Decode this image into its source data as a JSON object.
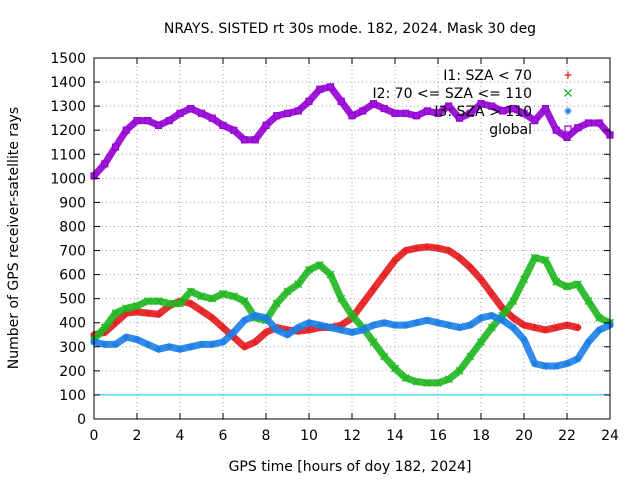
{
  "chart_data": {
    "type": "scatter",
    "title": "NRAYS. SISTED rt 30s mode. 182, 2024. Mask 30 deg",
    "xlabel": "GPS time [hours of doy 182, 2024]",
    "ylabel": "Number of GPS receiver-satellite rays",
    "xlim": [
      0,
      24
    ],
    "ylim": [
      0,
      1500
    ],
    "xticks": [
      0,
      2,
      4,
      6,
      8,
      10,
      12,
      14,
      16,
      18,
      20,
      22,
      24
    ],
    "yticks": [
      0,
      100,
      200,
      300,
      400,
      500,
      600,
      700,
      800,
      900,
      1000,
      1100,
      1200,
      1300,
      1400,
      1500
    ],
    "grid": true,
    "legend_position": "top-right",
    "threshold_line": {
      "y": 100,
      "color": "#00d0d0"
    },
    "series": [
      {
        "name": "I1: SZA < 70",
        "color": "#e41a1c",
        "marker": "plus",
        "x": [
          0,
          0.5,
          1,
          1.5,
          2,
          2.5,
          3,
          3.5,
          4,
          4.5,
          5,
          5.5,
          6,
          6.5,
          7,
          7.5,
          8,
          8.5,
          9,
          9.5,
          10,
          10.5,
          11,
          11.5,
          12,
          12.5,
          13,
          13.5,
          14,
          14.5,
          15,
          15.5,
          16,
          16.5,
          17,
          17.5,
          18,
          18.5,
          19,
          19.5,
          20,
          20.5,
          21,
          21.5,
          22,
          22.5
        ],
        "values": [
          350,
          360,
          400,
          440,
          445,
          440,
          435,
          470,
          490,
          480,
          450,
          420,
          380,
          340,
          300,
          320,
          360,
          380,
          370,
          365,
          370,
          380,
          380,
          390,
          420,
          480,
          540,
          600,
          660,
          700,
          710,
          715,
          710,
          700,
          670,
          630,
          580,
          520,
          460,
          420,
          390,
          380,
          370,
          380,
          390,
          380
        ]
      },
      {
        "name": "I2: 70 <= SZA <= 110",
        "color": "#1fb71f",
        "marker": "x",
        "x": [
          0,
          0.5,
          1,
          1.5,
          2,
          2.5,
          3,
          3.5,
          4,
          4.5,
          5,
          5.5,
          6,
          6.5,
          7,
          7.5,
          8,
          8.5,
          9,
          9.5,
          10,
          10.5,
          11,
          11.5,
          12,
          12.5,
          13,
          13.5,
          14,
          14.5,
          15,
          15.5,
          16,
          16.5,
          17,
          17.5,
          18,
          18.5,
          19,
          19.5,
          20,
          20.5,
          21,
          21.5,
          22,
          22.5,
          23,
          23.5,
          24
        ],
        "values": [
          330,
          380,
          440,
          460,
          470,
          490,
          490,
          480,
          480,
          530,
          510,
          500,
          520,
          510,
          490,
          420,
          410,
          480,
          530,
          560,
          620,
          640,
          600,
          500,
          430,
          380,
          320,
          260,
          210,
          170,
          155,
          150,
          150,
          165,
          200,
          260,
          320,
          380,
          430,
          490,
          580,
          670,
          660,
          570,
          550,
          560,
          490,
          420,
          400
        ]
      },
      {
        "name": "I3: SZA > 110",
        "color": "#1c7fe6",
        "marker": "star",
        "x": [
          0,
          0.5,
          1,
          1.5,
          2,
          2.5,
          3,
          3.5,
          4,
          4.5,
          5,
          5.5,
          6,
          6.5,
          7,
          7.5,
          8,
          8.5,
          9,
          9.5,
          10,
          10.5,
          11,
          11.5,
          12,
          12.5,
          13,
          13.5,
          14,
          14.5,
          15,
          15.5,
          16,
          16.5,
          17,
          17.5,
          18,
          18.5,
          19,
          19.5,
          20,
          20.5,
          21,
          21.5,
          22,
          22.5,
          23,
          23.5,
          24
        ],
        "values": [
          320,
          310,
          310,
          340,
          330,
          310,
          290,
          300,
          290,
          300,
          310,
          310,
          320,
          360,
          410,
          430,
          420,
          370,
          350,
          380,
          400,
          390,
          380,
          370,
          360,
          370,
          390,
          400,
          390,
          390,
          400,
          410,
          400,
          390,
          380,
          390,
          420,
          430,
          410,
          380,
          330,
          230,
          220,
          220,
          230,
          250,
          320,
          370,
          390
        ]
      },
      {
        "name": "global",
        "color": "#9400d3",
        "marker": "square",
        "x": [
          0,
          0.5,
          1,
          1.5,
          2,
          2.5,
          3,
          3.5,
          4,
          4.5,
          5,
          5.5,
          6,
          6.5,
          7,
          7.5,
          8,
          8.5,
          9,
          9.5,
          10,
          10.5,
          11,
          11.5,
          12,
          12.5,
          13,
          13.5,
          14,
          14.5,
          15,
          15.5,
          16,
          16.5,
          17,
          17.5,
          18,
          18.5,
          19,
          19.5,
          20,
          20.5,
          21,
          21.5,
          22,
          22.5,
          23,
          23.5,
          24
        ],
        "values": [
          1010,
          1060,
          1130,
          1200,
          1240,
          1240,
          1220,
          1240,
          1270,
          1290,
          1270,
          1250,
          1220,
          1200,
          1160,
          1160,
          1220,
          1260,
          1270,
          1280,
          1320,
          1370,
          1380,
          1320,
          1260,
          1280,
          1310,
          1290,
          1270,
          1270,
          1260,
          1280,
          1270,
          1300,
          1250,
          1270,
          1310,
          1300,
          1280,
          1290,
          1270,
          1240,
          1290,
          1200,
          1170,
          1210,
          1230,
          1230,
          1180
        ]
      }
    ]
  }
}
